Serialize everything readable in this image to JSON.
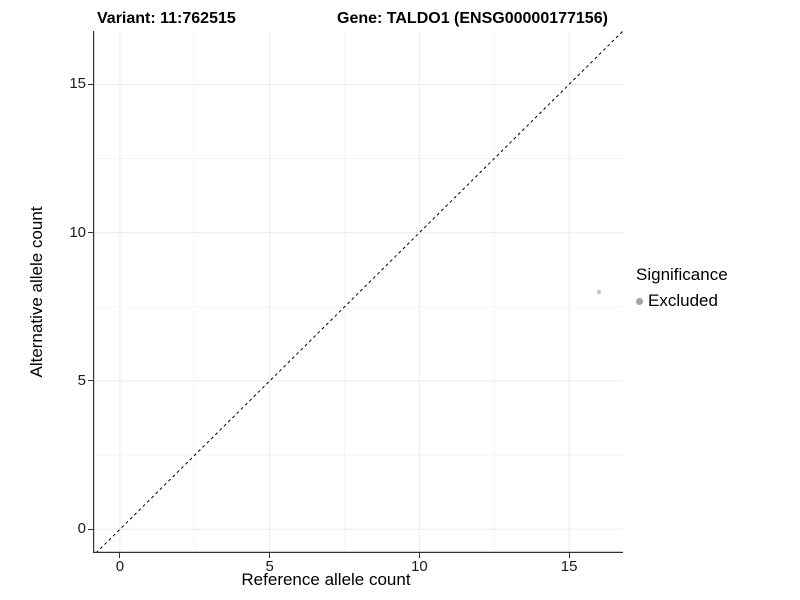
{
  "figure": {
    "title_left": "Variant: 11:762515",
    "title_right": "Gene: TALDO1 (ENSG00000177156)"
  },
  "chart_data": {
    "type": "scatter",
    "xlabel": "Reference allele count",
    "ylabel": "Alternative allele count",
    "xlim": [
      -0.9,
      16.8
    ],
    "ylim": [
      -0.8,
      16.8
    ],
    "xticks": [
      0,
      5,
      10,
      15
    ],
    "yticks": [
      0,
      5,
      10,
      15
    ],
    "minor_gridlines_x": [
      2.5,
      7.5,
      12.5
    ],
    "minor_gridlines_y": [
      2.5,
      7.5,
      12.5
    ],
    "grid": "major+minor",
    "points": [
      {
        "x": 16,
        "y": 8,
        "series": "Excluded",
        "color": "#c4c4c4",
        "radius": 2.2
      }
    ],
    "identity_line": {
      "note": "y = x",
      "style": "dashed",
      "color": "#000000"
    },
    "legend": {
      "title": "Significance",
      "position": "right",
      "entries": [
        {
          "label": "Excluded",
          "color": "#a3a3a3"
        }
      ]
    },
    "colors": {
      "axis_line": "#333333",
      "grid_major": "#ebebeb",
      "grid_minor": "#f5f5f5",
      "tick_text": "#1a1a1a"
    }
  }
}
